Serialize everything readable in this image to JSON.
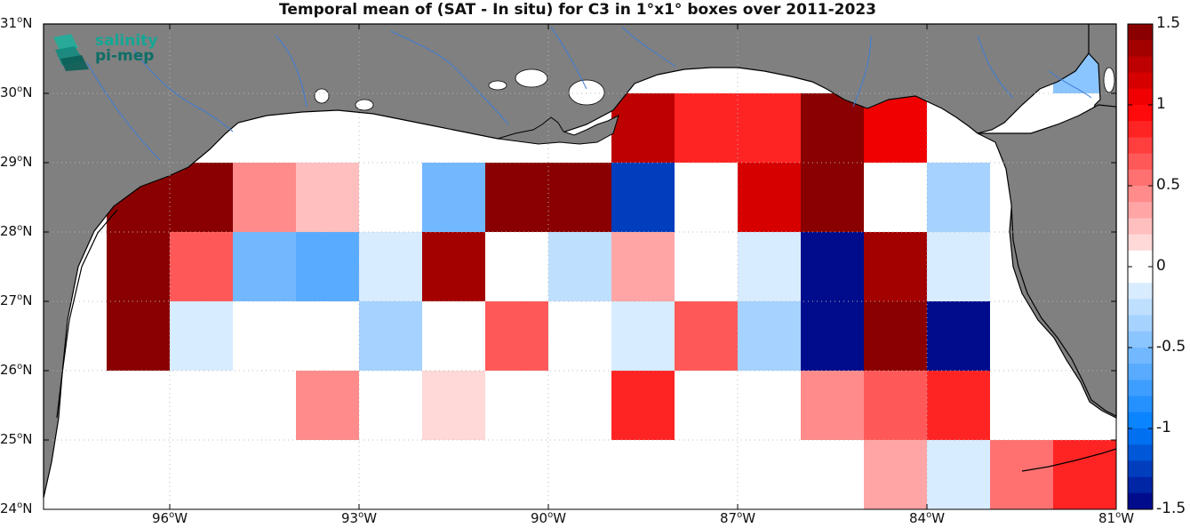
{
  "title": "Temporal mean of (SAT - In situ) for C3 in 1°x1° boxes over 2011-2023",
  "logo": {
    "line1": "salinity",
    "line2": "pi-mep"
  },
  "map": {
    "lon_range": [
      -98,
      -81
    ],
    "lat_range": [
      24,
      31
    ],
    "colors": {
      "land": "#808080",
      "ocean": "#ffffff",
      "coast": "#000000",
      "rivers": "#3c7dd8"
    }
  },
  "x_ticks": [
    {
      "lon": -96,
      "deg": "96",
      "suffix": "W"
    },
    {
      "lon": -93,
      "deg": "93",
      "suffix": "W"
    },
    {
      "lon": -90,
      "deg": "90",
      "suffix": "W"
    },
    {
      "lon": -87,
      "deg": "87",
      "suffix": "W"
    },
    {
      "lon": -84,
      "deg": "84",
      "suffix": "W"
    },
    {
      "lon": -81,
      "deg": "81",
      "suffix": "W"
    }
  ],
  "y_ticks": [
    {
      "lat": 31,
      "deg": "31",
      "suffix": "N"
    },
    {
      "lat": 30,
      "deg": "30",
      "suffix": "N"
    },
    {
      "lat": 29,
      "deg": "29",
      "suffix": "N"
    },
    {
      "lat": 28,
      "deg": "28",
      "suffix": "N"
    },
    {
      "lat": 27,
      "deg": "27",
      "suffix": "N"
    },
    {
      "lat": 26,
      "deg": "26",
      "suffix": "N"
    },
    {
      "lat": 25,
      "deg": "25",
      "suffix": "N"
    },
    {
      "lat": 24,
      "deg": "24",
      "suffix": "N"
    }
  ],
  "colorbar": {
    "range": [
      -1.5,
      1.5
    ],
    "steps": 30,
    "ticks": [
      {
        "value": 1.5,
        "label": "1.5"
      },
      {
        "value": 1,
        "label": "1"
      },
      {
        "value": 0.5,
        "label": "0.5"
      },
      {
        "value": 0,
        "label": "0"
      },
      {
        "value": -0.5,
        "label": "-0.5"
      },
      {
        "value": -1,
        "label": "-1"
      },
      {
        "value": -1.5,
        "label": "-1.5"
      }
    ]
  },
  "boxes": [
    {
      "lon": -96.5,
      "lat": 28.5,
      "value": 1.45
    },
    {
      "lon": -95.5,
      "lat": 28.5,
      "value": 1.45
    },
    {
      "lon": -94.5,
      "lat": 28.5,
      "value": 0.45
    },
    {
      "lon": -93.5,
      "lat": 28.5,
      "value": 0.25
    },
    {
      "lon": -92.5,
      "lat": 28.5,
      "value": 0.0
    },
    {
      "lon": -91.5,
      "lat": 28.5,
      "value": -0.6
    },
    {
      "lon": -90.5,
      "lat": 28.5,
      "value": 1.45
    },
    {
      "lon": -89.5,
      "lat": 28.5,
      "value": 1.45
    },
    {
      "lon": -88.5,
      "lat": 29.5,
      "value": 1.3
    },
    {
      "lon": -88.5,
      "lat": 28.5,
      "value": -1.25
    },
    {
      "lon": -87.5,
      "lat": 29.5,
      "value": 0.9
    },
    {
      "lon": -87.5,
      "lat": 28.5,
      "value": 0.0
    },
    {
      "lon": -86.5,
      "lat": 29.5,
      "value": 0.85
    },
    {
      "lon": -86.5,
      "lat": 28.5,
      "value": 1.1
    },
    {
      "lon": -85.5,
      "lat": 29.5,
      "value": 1.45
    },
    {
      "lon": -85.5,
      "lat": 28.5,
      "value": 1.45
    },
    {
      "lon": -84.5,
      "lat": 29.5,
      "value": 1.05
    },
    {
      "lon": -84.5,
      "lat": 28.5,
      "value": 0.0
    },
    {
      "lon": -83.5,
      "lat": 28.5,
      "value": -0.35
    },
    {
      "lon": -96.5,
      "lat": 27.5,
      "value": 1.45
    },
    {
      "lon": -95.5,
      "lat": 27.5,
      "value": 0.6
    },
    {
      "lon": -94.5,
      "lat": 27.5,
      "value": -0.55
    },
    {
      "lon": -93.5,
      "lat": 27.5,
      "value": -0.7
    },
    {
      "lon": -92.5,
      "lat": 27.5,
      "value": -0.15
    },
    {
      "lon": -91.5,
      "lat": 27.5,
      "value": 1.35
    },
    {
      "lon": -90.5,
      "lat": 27.5,
      "value": 0.0
    },
    {
      "lon": -89.5,
      "lat": 27.5,
      "value": -0.25
    },
    {
      "lon": -88.5,
      "lat": 27.5,
      "value": 0.3
    },
    {
      "lon": -87.5,
      "lat": 27.5,
      "value": 0.0
    },
    {
      "lon": -86.5,
      "lat": 27.5,
      "value": -0.15
    },
    {
      "lon": -85.5,
      "lat": 27.5,
      "value": -1.5
    },
    {
      "lon": -84.5,
      "lat": 27.5,
      "value": 1.4
    },
    {
      "lon": -83.5,
      "lat": 27.5,
      "value": -0.15
    },
    {
      "lon": -96.5,
      "lat": 26.5,
      "value": 1.45
    },
    {
      "lon": -95.5,
      "lat": 26.5,
      "value": -0.15
    },
    {
      "lon": -94.5,
      "lat": 26.5,
      "value": 0.0
    },
    {
      "lon": -93.5,
      "lat": 26.5,
      "value": 0.0
    },
    {
      "lon": -92.5,
      "lat": 26.5,
      "value": -0.4
    },
    {
      "lon": -91.5,
      "lat": 26.5,
      "value": 0.0
    },
    {
      "lon": -90.5,
      "lat": 26.5,
      "value": 0.6
    },
    {
      "lon": -89.5,
      "lat": 26.5,
      "value": 0.0
    },
    {
      "lon": -88.5,
      "lat": 26.5,
      "value": -0.15
    },
    {
      "lon": -87.5,
      "lat": 26.5,
      "value": 0.6
    },
    {
      "lon": -86.5,
      "lat": 26.5,
      "value": -0.3
    },
    {
      "lon": -85.5,
      "lat": 26.5,
      "value": -1.5
    },
    {
      "lon": -84.5,
      "lat": 26.5,
      "value": 1.45
    },
    {
      "lon": -83.5,
      "lat": 26.5,
      "value": -1.5
    },
    {
      "lon": -93.5,
      "lat": 25.5,
      "value": 0.45
    },
    {
      "lon": -91.5,
      "lat": 25.5,
      "value": 0.15
    },
    {
      "lon": -88.5,
      "lat": 25.5,
      "value": 0.85
    },
    {
      "lon": -85.5,
      "lat": 25.5,
      "value": 0.45
    },
    {
      "lon": -84.5,
      "lat": 25.5,
      "value": 0.6
    },
    {
      "lon": -83.5,
      "lat": 25.5,
      "value": 0.85
    },
    {
      "lon": -84.5,
      "lat": 24.5,
      "value": 0.3
    },
    {
      "lon": -83.5,
      "lat": 24.5,
      "value": -0.15
    },
    {
      "lon": -82.5,
      "lat": 24.5,
      "value": 0.5
    },
    {
      "lon": -81.5,
      "lat": 24.5,
      "value": 0.9
    },
    {
      "lon": -81.5,
      "lat": 30.5,
      "value": -0.5
    }
  ]
}
